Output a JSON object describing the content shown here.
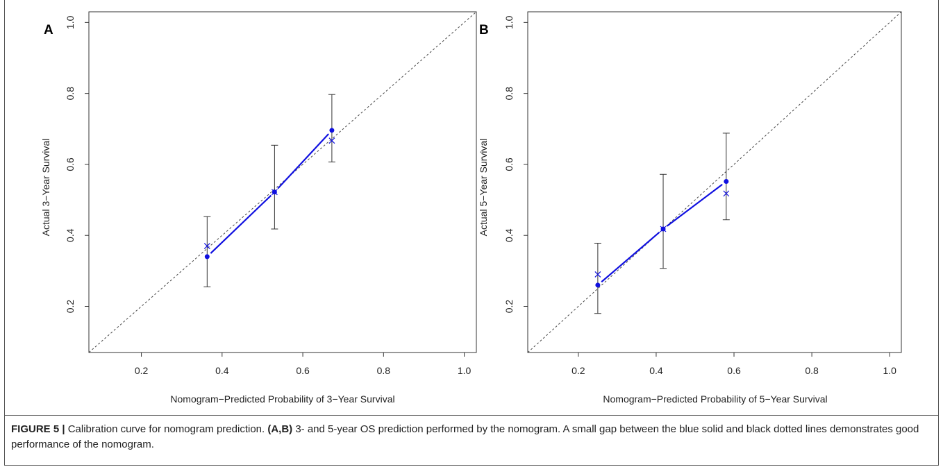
{
  "figure": {
    "caption_label": "FIGURE 5 |",
    "caption_text_1": " Calibration curve for nomogram prediction. ",
    "caption_bold_2": "(A,B)",
    "caption_text_3": " 3- and 5-year OS prediction performed by the nomogram. A small gap between the blue solid and black dotted lines demonstrates good performance of the nomogram."
  },
  "chart_data": [
    {
      "type": "line",
      "panel_label": "A",
      "title": "",
      "xlabel": "Nomogram−Predicted Probability of 3−Year Survival",
      "ylabel": "Actual 3−Year Survival",
      "xlim": [
        0.07,
        1.03
      ],
      "ylim": [
        0.07,
        1.03
      ],
      "xticks": [
        "0.2",
        "0.4",
        "0.6",
        "0.8",
        "1.0"
      ],
      "yticks": [
        "0.2",
        "0.4",
        "0.6",
        "0.8",
        "1.0"
      ],
      "reference_line": "dotted diagonal y = x",
      "series": [
        {
          "style": "blue solid line with dots",
          "x": [
            0.363,
            0.53,
            0.672
          ],
          "y": [
            0.34,
            0.522,
            0.696
          ]
        },
        {
          "style": "blue x markers",
          "x": [
            0.363,
            0.53,
            0.672
          ],
          "y": [
            0.37,
            0.522,
            0.667
          ]
        },
        {
          "style": "black error bars",
          "x": [
            0.363,
            0.53,
            0.672
          ],
          "lower": [
            0.255,
            0.418,
            0.607
          ],
          "upper": [
            0.453,
            0.654,
            0.797
          ]
        }
      ],
      "colors": {
        "curve": "#1010e0",
        "reference": "#444444",
        "errorbar": "#333333"
      }
    },
    {
      "type": "line",
      "panel_label": "B",
      "title": "",
      "xlabel": "Nomogram−Predicted Probability of 5−Year Survival",
      "ylabel": "Actual 5−Year Survival",
      "xlim": [
        0.07,
        1.03
      ],
      "ylim": [
        0.07,
        1.03
      ],
      "xticks": [
        "0.2",
        "0.4",
        "0.6",
        "0.8",
        "1.0"
      ],
      "yticks": [
        "0.2",
        "0.4",
        "0.6",
        "0.8",
        "1.0"
      ],
      "reference_line": "dotted diagonal y = x",
      "series": [
        {
          "style": "blue solid line with dots",
          "x": [
            0.25,
            0.418,
            0.58
          ],
          "y": [
            0.26,
            0.418,
            0.552
          ]
        },
        {
          "style": "blue x markers",
          "x": [
            0.25,
            0.418,
            0.58
          ],
          "y": [
            0.29,
            0.418,
            0.518
          ]
        },
        {
          "style": "black error bars",
          "x": [
            0.25,
            0.418,
            0.58
          ],
          "lower": [
            0.18,
            0.307,
            0.444
          ],
          "upper": [
            0.378,
            0.572,
            0.688
          ]
        }
      ],
      "colors": {
        "curve": "#1010e0",
        "reference": "#444444",
        "errorbar": "#333333"
      }
    }
  ]
}
